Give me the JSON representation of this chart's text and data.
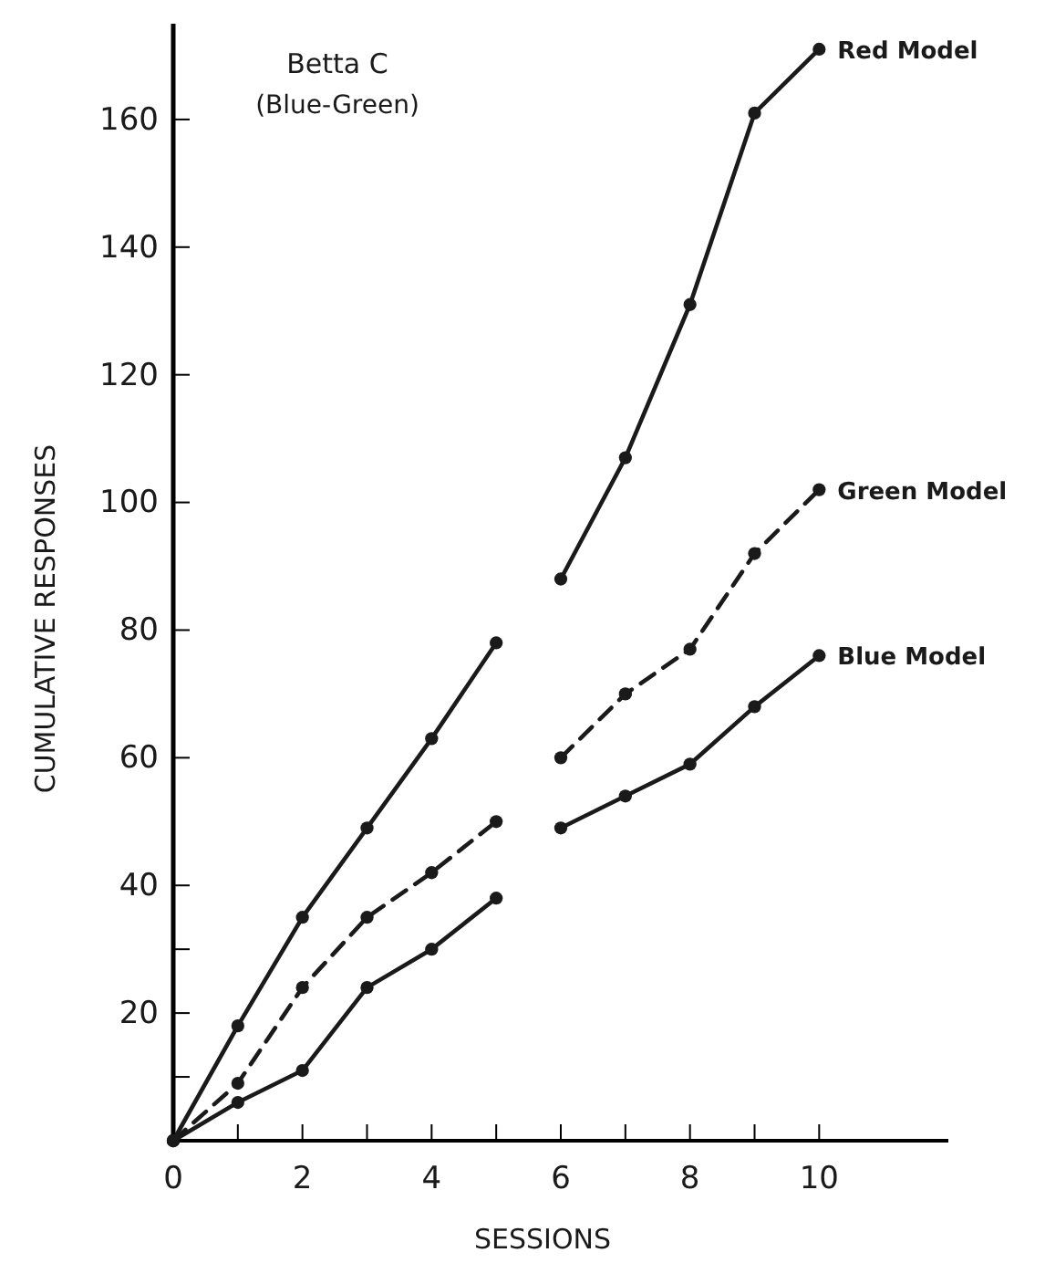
{
  "chart_data": {
    "type": "line",
    "title": "Betta C",
    "subtitle": "(Blue-Green)",
    "xlabel": "SESSIONS",
    "ylabel": "CUMULATIVE RESPONSES",
    "xlim": [
      0,
      12
    ],
    "xticks": [
      0,
      {
        "value": 1,
        "label": null
      },
      2,
      {
        "value": 3,
        "label": null
      },
      4,
      {
        "value": 5,
        "label": null
      },
      6,
      {
        "value": 7,
        "label": null
      },
      8,
      {
        "value": 9,
        "label": null
      },
      10
    ],
    "ylim": [
      0,
      175
    ],
    "yticks": [
      {
        "value": 10,
        "label": null
      },
      20,
      {
        "value": 30,
        "label": null
      },
      40,
      60,
      80,
      100,
      120,
      140,
      160
    ],
    "grid": false,
    "marker": "circle",
    "series": [
      {
        "name": "Red Model",
        "color": "#1a1a1a",
        "line_style": "solid",
        "x": [
          0,
          1,
          2,
          3,
          4,
          5,
          5.5,
          6,
          7,
          8,
          9,
          10
        ],
        "values": [
          0,
          18,
          35,
          49,
          63,
          78,
          null,
          88,
          107,
          131,
          161,
          171
        ]
      },
      {
        "name": "Green Model",
        "color": "#1a1a1a",
        "line_style": "dashed",
        "x": [
          0,
          1,
          2,
          3,
          4,
          5,
          5.5,
          6,
          7,
          8,
          9,
          10
        ],
        "values": [
          0,
          9,
          24,
          35,
          42,
          50,
          null,
          60,
          70,
          77,
          92,
          102
        ]
      },
      {
        "name": "Blue Model",
        "color": "#1a1a1a",
        "line_style": "solid",
        "x": [
          0,
          1,
          2,
          3,
          4,
          5,
          5.5,
          6,
          7,
          8,
          9,
          10
        ],
        "values": [
          0,
          6,
          11,
          24,
          30,
          38,
          null,
          49,
          54,
          59,
          68,
          76
        ]
      }
    ]
  }
}
